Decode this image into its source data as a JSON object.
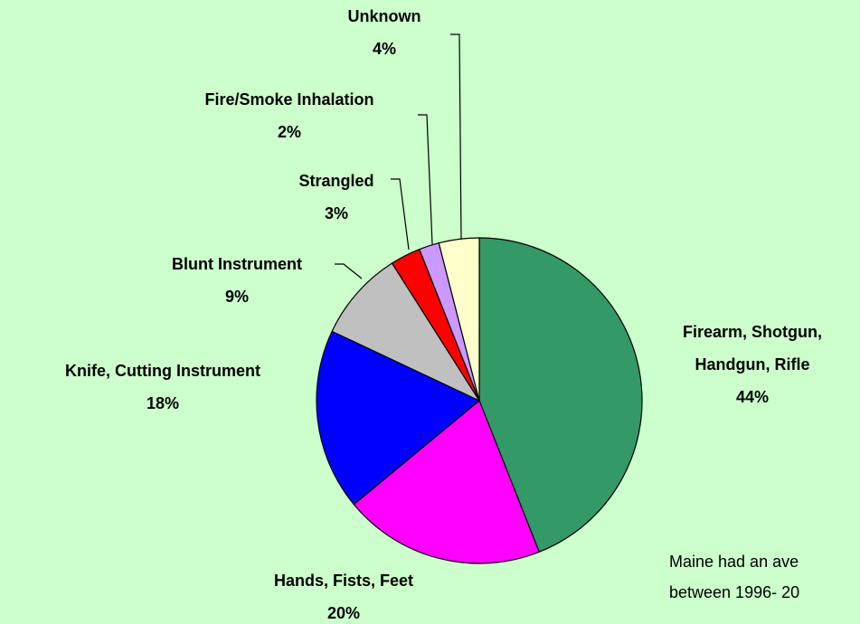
{
  "chart_data": {
    "type": "pie",
    "categories": [
      "Firearm, Shotgun, Handgun, Rifle",
      "Hands, Fists, Feet",
      "Knife, Cutting Instrument",
      "Blunt Instrument",
      "Strangled",
      "Fire/Smoke Inhalation",
      "Unknown"
    ],
    "values": [
      44,
      20,
      18,
      9,
      3,
      2,
      4
    ],
    "value_labels": [
      "44%",
      "20%",
      "18%",
      "9%",
      "3%",
      "2%",
      "4%"
    ],
    "colors": [
      "#339966",
      "#ff00ff",
      "#0000ff",
      "#c0c0c0",
      "#ff0000",
      "#cc99ff",
      "#ffffcc"
    ],
    "annotation": [
      "Maine had an ave",
      "between 1996- 20"
    ]
  }
}
